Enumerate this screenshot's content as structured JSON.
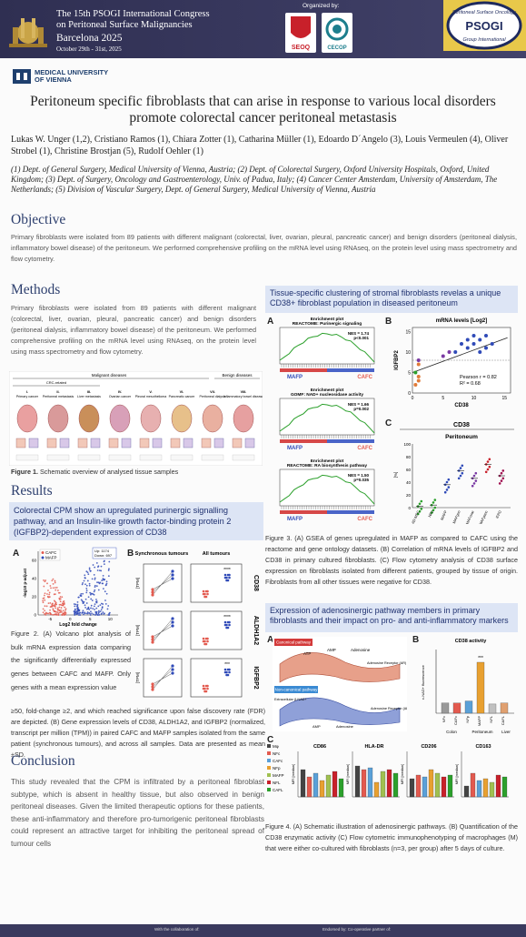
{
  "header": {
    "congress_line1": "The 15th PSOGI International Congress",
    "congress_line2": "on Peritoneal Surface Malignancies",
    "city_year": "Barcelona 2025",
    "dates": "October 29th - 31st, 2025",
    "organized_by": "Organized by:",
    "org1": "SEOQ",
    "org2": "CECOP",
    "psogi_ring": "Peritoneal Surface Oncology",
    "psogi_main": "PSOGI",
    "psogi_bottom": "Group International"
  },
  "university": {
    "line1": "MEDICAL UNIVERSITY",
    "line2": "OF VIENNA"
  },
  "title": "Peritoneum specific fibroblasts that can arise in response to various local disorders promote colorectal cancer peritoneal metastasis",
  "authors": "Lukas W. Unger (1,2), Cristiano Ramos (1), Chiara Zotter (1),  Catharina Müller (1), Edoardo D´Angelo (3), Louis Vermeulen (4), Oliver Strobel (1), Christine Brostjan (5), Rudolf Oehler (1)",
  "affiliations": "(1) Dept. of  General Surgery, Medical University of Vienna, Austria; (2) Dept. of Colorectal Surgery, Oxford University Hospitals, Oxford, United Kingdom; (3) Dept. of Surgery, Oncology and Gastroenterology, Univ. of Padua, Italy; (4) Cancer Center Amsterdam, University of Amsterdam, The Netherlands; (5) Division of Vascular Surgery, Dept. of General Surgery, Medical University of Vienna, Austria",
  "objective": {
    "heading": "Objective",
    "text": "Primary fibroblasts were isolated from 89 patients with different malignant (colorectal, liver, ovarian, pleural, pancreatic cancer) and benign disorders (peritoneal dialysis, inflammatory bowel disease) of the peritoneum. We performed comprehensive profiling on the mRNA level using RNAseq, on the protein level using mass spectrometry and flow cytometry."
  },
  "methods": {
    "heading": "Methods",
    "text": "Primary fibroblasts were isolated from 89 patients with different malignant (colorectal, liver, ovarian, pleural, pancreatic cancer) and benign disorders (peritoneal dialysis, inflammatory bowel disease) of the peritoneum. We performed comprehensive profiling on the mRNA level using RNAseq, on the protein level using mass spectrometry and flow cytometry.",
    "fig1_groups": {
      "malignant": "Malignant diseases",
      "benign": "Benign diseases",
      "crc": "CRC-related"
    },
    "fig1_columns": [
      "I. Primary cancer",
      "II. Peritoneal metastasis",
      "III. Liver metastasis",
      "IV. Ovarian cancer",
      "V. Pleural mesothelioma",
      "VI. Pancreatic cancer",
      "VII. Peritoneal dialysis",
      "VIII. Inflammatory bowel disease"
    ],
    "fig1_caption_label": "Figure 1.",
    "fig1_caption": " Schematic overview of analysed tissue samples"
  },
  "results": {
    "heading": "Results",
    "box": "Colorectal CPM show an upregulated purinergic signalling pathway, and an Insulin-like growth factor-binding protein 2 (IGFBP2)-dependent expression of CD38",
    "fig2_caption_short": "Figure 2. (A) Volcano plot analysis of bulk mRNA expression data comparing the significantly differentially expressed genes between CAFC and MAFP. Only genes with a mean expression value",
    "fig2_caption_rest": "≥50, fold-change ≥2, and which reached significance upon false discovery rate (FDR) are depicted. (B) Gene expression levels of CD38, ALDH1A2, and IGFBP2 (normalized, transcript per million (TPM)) in paired CAFC and MAFP samples isolated from the same patient (synchronous tumours), and across all samples. Data are presented as mean ±SD.",
    "volcano": {
      "legend": [
        "CAFC",
        "MAFP"
      ],
      "xlabel": "Log2 fold change",
      "ylabel": "-log10 p-adjust",
      "up_label": "Up: 1174",
      "down_label": "Down: 697",
      "x_ticks": [
        "-5",
        "0",
        "5",
        "10"
      ],
      "y_ticks": [
        "0",
        "20",
        "40",
        "60"
      ]
    },
    "panelB": {
      "col1": "Synchronous tumours",
      "col2": "All tumours",
      "genes": [
        "CD38",
        "ALDH1A2",
        "IGFBP2"
      ],
      "ylabel": "[TPM]",
      "sig": "****",
      "sig3": "***"
    }
  },
  "conclusion": {
    "heading": "Conclusion",
    "text": "This study revealed that the CPM is infiltrated by a peritoneal fibroblast subtype, which is absent in healthy tissue, but also observed in benign peritoneal diseases. Given the limited therapeutic options for these patients, these anti-inflammatory and therefore pro-tumorigenic peritoneal fibroblasts could represent an attractive target for inhibiting the peritoneal spread of tumour cells"
  },
  "fig3": {
    "box": "Tissue-specific clustering of stromal fibroblasts revelas a unique CD38+ fibroblast population in diseased peritoneum",
    "gsea": [
      {
        "title": "Enrichment plot",
        "subtitle": "REACTOME: Purinergic signaling",
        "nes": "NES = 1.74",
        "p": "p<0.001"
      },
      {
        "title": "Enrichment plot",
        "subtitle": "GOMF: NAD+ nucleosidase activity",
        "nes": "NES = 1.66",
        "p": "p=0.002"
      },
      {
        "title": "Enrichment plot",
        "subtitle": "REACTOME: RA biosynthesis pathway",
        "nes": "NES = 1.50",
        "p": "p=0.035"
      }
    ],
    "maf": "MAFP",
    "caf": "CAFC",
    "scatter": {
      "title": "mRNA levels [Log2]",
      "ylabel": "IGFBP2",
      "xlabel": "CD38",
      "pearson": "Pearson r = 0.82",
      "r2": "R² = 0.68",
      "x_ticks": [
        "0",
        "5",
        "10",
        "15"
      ],
      "y_ticks": [
        "0",
        "5",
        "10",
        "15"
      ]
    },
    "cd38": {
      "title": "CD38",
      "subtitle": "Peritoneum",
      "ylabel": "[%]",
      "y_ticks": [
        "0",
        "20",
        "40",
        "60",
        "80",
        "100"
      ],
      "categories": [
        "AD-MSC",
        "NFp",
        "MAFP",
        "MAFgen",
        "MAFovar",
        "MAFpanc",
        "IFPD"
      ]
    },
    "caption": "Figure 3. (A) GSEA of genes upregulated in MAFP as compared to CAFC using the reactome and gene ontology datasets. (B) Correlation of mRNA levels of IGFBP2 and CD38 in primary cultured fibroblasts. (C) Flow cytometry analysis of CD38 surface expression on fibroblasts isolated from different patients, grouped by tissue of origin. Fibroblasts from all other tissues were negative for CD38."
  },
  "fig4": {
    "box": "Expression of adenosinergic pathway members in primary fibroblasts and their impact on pro- and anti-inflammatory markers",
    "schem_labels": {
      "top": "Canonical pathway",
      "bottom": "Non-canonical pathway",
      "atp": "ATP",
      "amp": "AMP",
      "adenosine": "Adenosine",
      "receptor": "Adenosine Receptor (AR)",
      "enad": "Extracellular β-NAD+"
    },
    "activity": {
      "title": "CD38 activity",
      "ylabel": "ε-NAD+ fluorescence",
      "groups": [
        "Colon",
        "Peritoneum",
        "Liver"
      ],
      "cats": [
        "NFc",
        "CAFc",
        "NFp",
        "MAFP",
        "NFL",
        "CAFL"
      ],
      "sig": "***"
    },
    "markers": [
      "CD86",
      "HLA-DR",
      "CD206",
      "CD163"
    ],
    "marker_ylabel": "MFI [median]",
    "legend": [
      "Mφ",
      "NFc",
      "CAFc",
      "NFp",
      "MAFP",
      "NFL",
      "CAFL"
    ],
    "caption": "Figure 4. (A) Schematic illustration of adenosinergic pathways. (B) Quantification of the CD38 enzymatic activity (C) Flow cytometric immunophenotyping of macrophages (M) that were either co-cultured with fibroblasts (n=3, per group) after 5 days of culture."
  },
  "footer": {
    "left": "With the collaboration of:",
    "right": "Endorsed by:       Co-operative partner of:"
  },
  "colors": {
    "navy": "#2f2f52",
    "heading": "#2d3f6e",
    "box_bg": "#dde5f5",
    "caf": "#e35a4f",
    "maf": "#2f4ab8"
  }
}
